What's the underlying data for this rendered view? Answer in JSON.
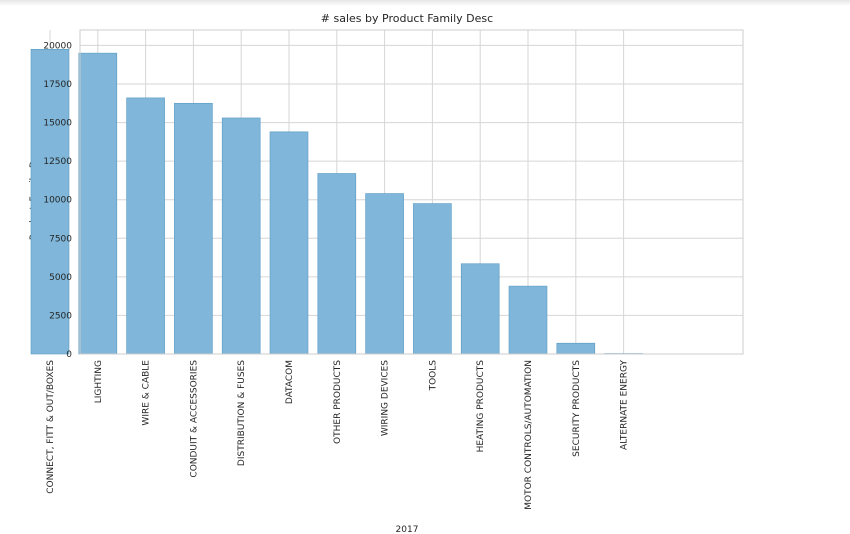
{
  "chart_data": {
    "type": "bar",
    "title": "# sales by Product Family Desc",
    "xlabel": "2017",
    "ylabel": "Product_Family_Desc",
    "categories": [
      "CONNECT, FITT & OUT/BOXES",
      "LIGHTING",
      "WIRE & CABLE",
      "CONDUIT & ACCESSORIES",
      "DISTRIBUTION & FUSES",
      "DATACOM",
      "OTHER PRODUCTS",
      "WIRING DEVICES",
      "TOOLS",
      "HEATING PRODUCTS",
      "MOTOR CONTROLS/AUTOMATION",
      "SECURITY PRODUCTS",
      "ALTERNATE ENERGY"
    ],
    "values": [
      19750,
      19500,
      16600,
      16250,
      15300,
      14400,
      11700,
      10400,
      9750,
      5850,
      4400,
      700,
      30
    ],
    "ylim": [
      0,
      21000
    ],
    "yticks": [
      0,
      2500,
      5000,
      7500,
      10000,
      12500,
      15000,
      17500,
      20000
    ],
    "grid": true,
    "bar_color": "#7fb6d9",
    "bar_edge_color": "#5a9bc4"
  }
}
